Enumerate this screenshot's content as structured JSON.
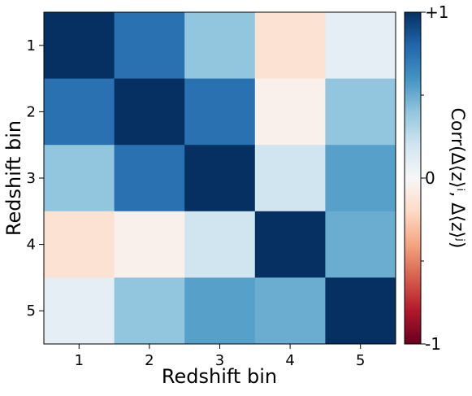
{
  "chart_data": {
    "type": "heatmap",
    "xlabel": "Redshift bin",
    "ylabel": "Redshift bin",
    "x_categories": [
      "1",
      "2",
      "3",
      "4",
      "5"
    ],
    "y_categories": [
      "1",
      "2",
      "3",
      "4",
      "5"
    ],
    "values": [
      [
        1.0,
        0.75,
        0.4,
        -0.15,
        0.1
      ],
      [
        0.75,
        1.0,
        0.75,
        -0.05,
        0.4
      ],
      [
        0.4,
        0.75,
        1.0,
        0.2,
        0.55
      ],
      [
        -0.15,
        -0.05,
        0.2,
        1.0,
        0.5
      ],
      [
        0.1,
        0.4,
        0.55,
        0.5,
        1.0
      ]
    ],
    "colorbar": {
      "label": "Corr(Δ⟨z⟩ⁱ, Δ⟨z⟩ʲ)",
      "range": [
        -1,
        1
      ],
      "colormap": "RdBu",
      "tick_labels": [
        {
          "value": 1,
          "label": "+1"
        },
        {
          "value": 0,
          "label": "0"
        },
        {
          "value": -1,
          "label": "-1"
        }
      ],
      "minor_ticks": [
        0.5,
        -0.5
      ]
    },
    "grid": false
  }
}
